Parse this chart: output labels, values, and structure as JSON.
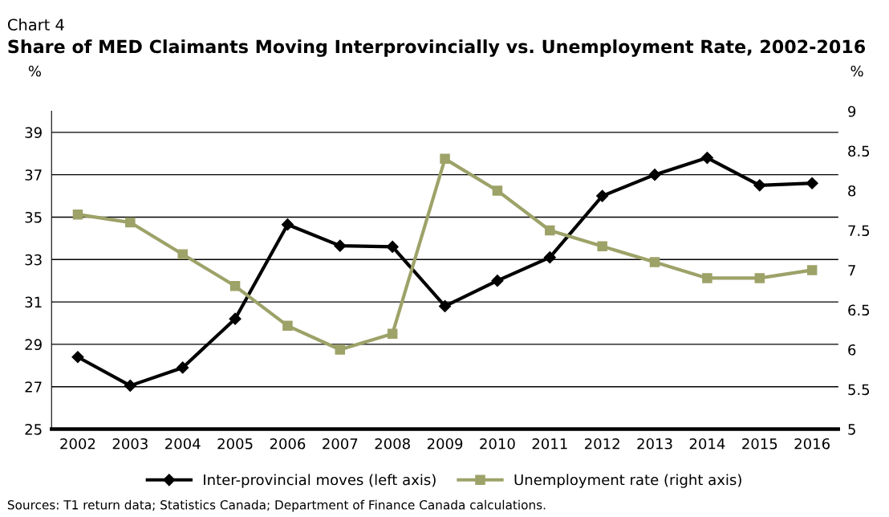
{
  "chart_data": {
    "type": "line",
    "subtitle": "Chart 4",
    "title": "Share of MED Claimants Moving Interprovincially vs. Unemployment Rate, 2002-2016",
    "ylabel": "%",
    "y2label": "%",
    "categories": [
      "2002",
      "2003",
      "2004",
      "2005",
      "2006",
      "2007",
      "2008",
      "2009",
      "2010",
      "2011",
      "2012",
      "2013",
      "2014",
      "2015",
      "2016"
    ],
    "series": [
      {
        "name": "Inter-provincial moves (left axis)",
        "color": "#000000",
        "marker": "diamond",
        "values": [
          28.4,
          27.05,
          27.9,
          30.2,
          34.65,
          33.65,
          33.6,
          30.8,
          32.0,
          33.1,
          36.0,
          37.0,
          37.8,
          36.5,
          36.6
        ]
      },
      {
        "name": "Unemployment rate (right axis)",
        "color": "#9da268",
        "marker": "square",
        "axis": "y2",
        "values": [
          7.7,
          7.6,
          7.2,
          6.8,
          6.3,
          6.0,
          6.2,
          8.4,
          8.0,
          7.5,
          7.3,
          7.1,
          6.9,
          6.9,
          7.0
        ]
      }
    ],
    "ylim": [
      25,
      40
    ],
    "yticks": [
      25,
      27,
      29,
      31,
      33,
      35,
      37,
      39
    ],
    "y2lim": [
      5,
      9
    ],
    "y2ticks": [
      5,
      5.5,
      6,
      6.5,
      7,
      7.5,
      8,
      8.5,
      9
    ],
    "grid": "y",
    "legend": "bottom",
    "annotations": [
      "Sources: T1 return data; Statistics Canada; Department of Finance Canada calculations."
    ]
  }
}
